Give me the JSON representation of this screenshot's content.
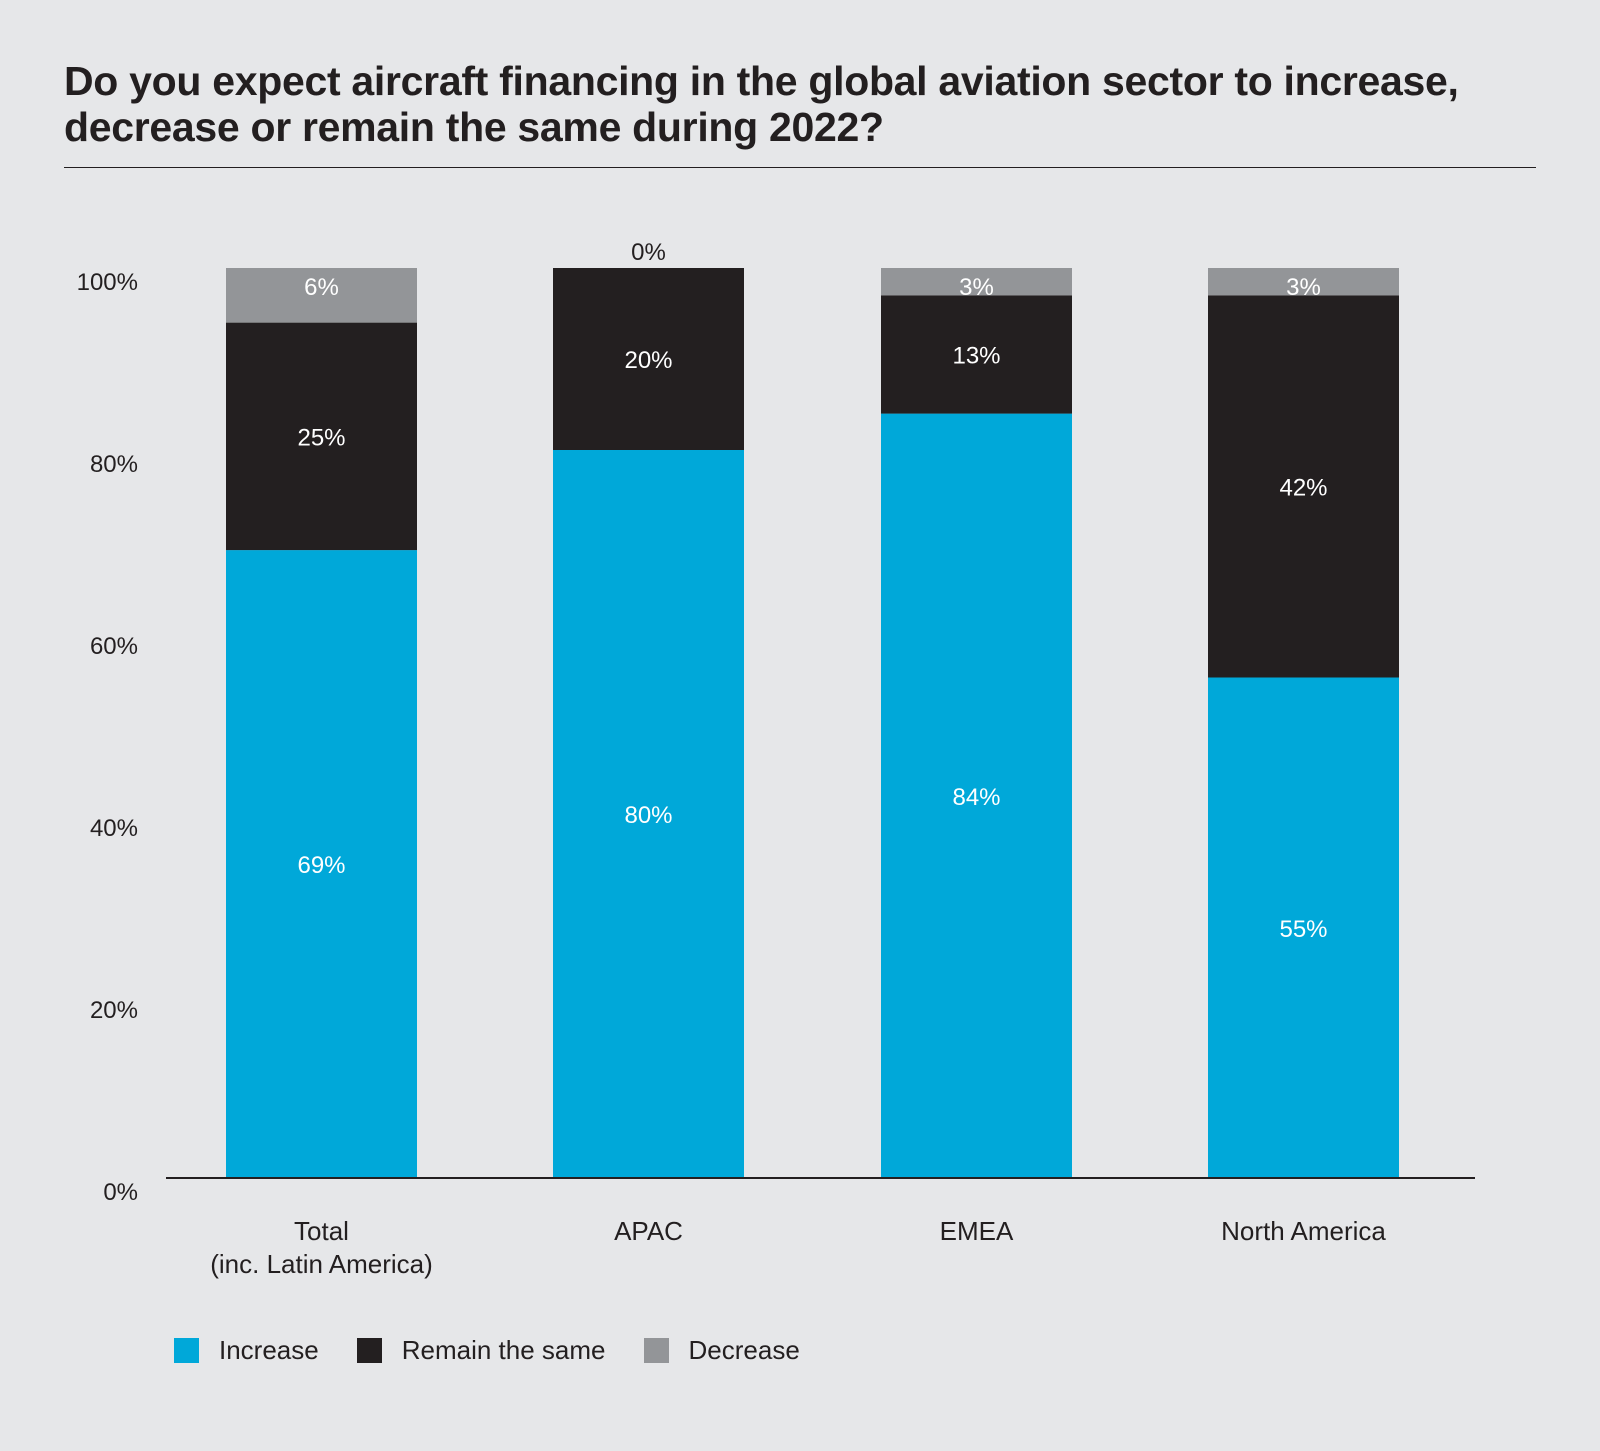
{
  "chart_data": {
    "type": "bar",
    "stacked": true,
    "title": "Do you expect aircraft financing in the global aviation sector to increase, decrease or remain the same during 2022?",
    "categories": [
      [
        "Total",
        "(inc. Latin America)"
      ],
      [
        "APAC"
      ],
      [
        "EMEA"
      ],
      [
        "North America"
      ]
    ],
    "series": [
      {
        "name": "Increase",
        "color": "#00a8d9",
        "values": [
          69,
          80,
          84,
          55
        ],
        "labels": [
          "69%",
          "80%",
          "84%",
          "55%"
        ]
      },
      {
        "name": "Remain the same",
        "color": "#231f20",
        "values": [
          25,
          20,
          13,
          42
        ],
        "labels": [
          "25%",
          "20%",
          "13%",
          "42%"
        ]
      },
      {
        "name": "Decrease",
        "color": "#939598",
        "values": [
          6,
          0,
          3,
          3
        ],
        "labels": [
          "6%",
          "0%",
          "3%",
          "3%"
        ]
      }
    ],
    "yticks": [
      0,
      20,
      40,
      60,
      80,
      100
    ],
    "ytick_labels": [
      "0%",
      "20%",
      "40%",
      "60%",
      "80%",
      "100%"
    ],
    "ylim": [
      0,
      100
    ],
    "xlabel": "",
    "ylabel": "",
    "grid": false,
    "legend_position": "bottom-left"
  }
}
